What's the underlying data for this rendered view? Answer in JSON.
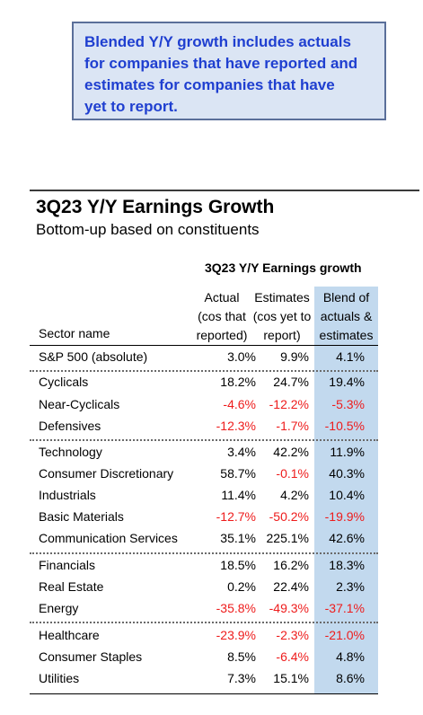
{
  "note": "Blended Y/Y growth includes actuals\nfor companies that have reported and\nestimates for companies that have\nyet to report.",
  "title": "3Q23 Y/Y Earnings Growth",
  "subtitle": "Bottom-up based on constituents",
  "table": {
    "title": "3Q23 Y/Y Earnings growth",
    "headers": {
      "name": "Sector name",
      "actual": "Actual\n(cos that\nreported)",
      "estimates": "Estimates\n(cos yet to\nreport)",
      "blend": "Blend of\nactuals &\nestimates"
    },
    "negative_color": "#ee1c1c",
    "blend_column_color": "#c2d9ee",
    "rows": [
      {
        "name": "S&P 500 (absolute)",
        "actual": "3.0%",
        "estimates": "9.9%",
        "blend": "4.1%"
      },
      {
        "name": "Cyclicals",
        "actual": "18.2%",
        "estimates": "24.7%",
        "blend": "19.4%"
      },
      {
        "name": "Near-Cyclicals",
        "actual": "-4.6%",
        "estimates": "-12.2%",
        "blend": "-5.3%"
      },
      {
        "name": "Defensives",
        "actual": "-12.3%",
        "estimates": "-1.7%",
        "blend": "-10.5%"
      },
      {
        "name": "Technology",
        "actual": "3.4%",
        "estimates": "42.2%",
        "blend": "11.9%"
      },
      {
        "name": "Consumer Discretionary",
        "actual": "58.7%",
        "estimates": "-0.1%",
        "blend": "40.3%"
      },
      {
        "name": "Industrials",
        "actual": "11.4%",
        "estimates": "4.2%",
        "blend": "10.4%"
      },
      {
        "name": "Basic Materials",
        "actual": "-12.7%",
        "estimates": "-50.2%",
        "blend": "-19.9%"
      },
      {
        "name": "Communication Services",
        "actual": "35.1%",
        "estimates": "225.1%",
        "blend": "42.6%"
      },
      {
        "name": "Financials",
        "actual": "18.5%",
        "estimates": "16.2%",
        "blend": "18.3%"
      },
      {
        "name": "Real Estate",
        "actual": "0.2%",
        "estimates": "22.4%",
        "blend": "2.3%"
      },
      {
        "name": "Energy",
        "actual": "-35.8%",
        "estimates": "-49.3%",
        "blend": "-37.1%"
      },
      {
        "name": "Healthcare",
        "actual": "-23.9%",
        "estimates": "-2.3%",
        "blend": "-21.0%"
      },
      {
        "name": "Consumer Staples",
        "actual": "8.5%",
        "estimates": "-6.4%",
        "blend": "4.8%"
      },
      {
        "name": "Utilities",
        "actual": "7.3%",
        "estimates": "15.1%",
        "blend": "8.6%"
      }
    ]
  }
}
